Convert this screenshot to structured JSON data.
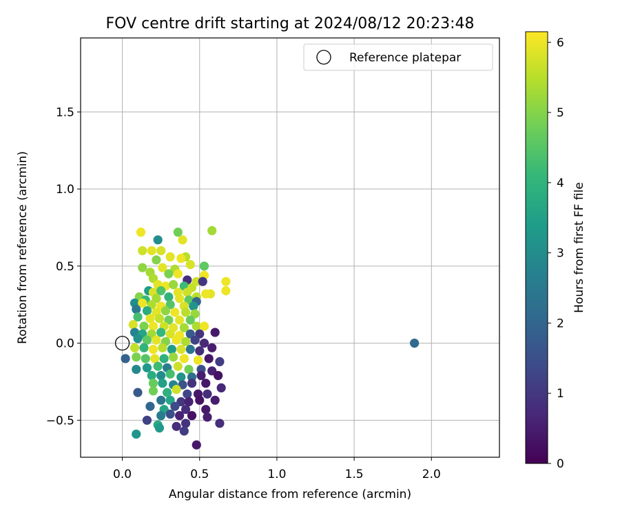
{
  "chart_data": {
    "type": "scatter",
    "title": "FOV centre drift starting at 2024/08/12 20:23:48",
    "xlabel": "Angular distance from reference (arcmin)",
    "ylabel": "Rotation from reference (arcmin)",
    "xlim": [
      -0.27,
      2.44
    ],
    "ylim": [
      -0.74,
      1.98
    ],
    "xticks": [
      0.0,
      0.5,
      1.0,
      1.5,
      2.0
    ],
    "xtick_labels": [
      "0.0",
      "0.5",
      "1.0",
      "1.5",
      "2.0"
    ],
    "yticks": [
      -0.5,
      0.0,
      0.5,
      1.0,
      1.5
    ],
    "ytick_labels": [
      "−0.5",
      "0.0",
      "0.5",
      "1.0",
      "1.5"
    ],
    "grid": true,
    "legend": {
      "position": "top-right",
      "entries": [
        "Reference platepar"
      ]
    },
    "reference_point": {
      "x": 0.0,
      "y": 0.0,
      "label": "Reference platepar",
      "marker": "open-circle"
    },
    "colorbar": {
      "label": "Hours from first FF file",
      "range": [
        0,
        6.15
      ],
      "ticks": [
        0,
        1,
        2,
        3,
        4,
        5,
        6
      ],
      "tick_labels": [
        "0",
        "1",
        "2",
        "3",
        "4",
        "5",
        "6"
      ],
      "colormap": "viridis"
    },
    "colormap_stops": [
      "#440154",
      "#482878",
      "#3e4a89",
      "#31688e",
      "#26828e",
      "#1f9e89",
      "#35b779",
      "#6ece58",
      "#b5de2b",
      "#fde725"
    ],
    "points": [
      {
        "x": 0.12,
        "y": 0.72,
        "c": 6.0
      },
      {
        "x": 0.36,
        "y": 0.72,
        "c": 4.8
      },
      {
        "x": 0.58,
        "y": 0.73,
        "c": 5.3
      },
      {
        "x": 0.39,
        "y": 0.67,
        "c": 5.9
      },
      {
        "x": 0.23,
        "y": 0.67,
        "c": 3.0
      },
      {
        "x": 0.13,
        "y": 0.6,
        "c": 5.7
      },
      {
        "x": 0.19,
        "y": 0.6,
        "c": 5.9
      },
      {
        "x": 0.25,
        "y": 0.6,
        "c": 5.8
      },
      {
        "x": 0.31,
        "y": 0.56,
        "c": 5.9
      },
      {
        "x": 0.41,
        "y": 0.56,
        "c": 5.5
      },
      {
        "x": 0.38,
        "y": 0.55,
        "c": 6.0
      },
      {
        "x": 0.22,
        "y": 0.54,
        "c": 5.0
      },
      {
        "x": 0.44,
        "y": 0.51,
        "c": 5.8
      },
      {
        "x": 0.53,
        "y": 0.5,
        "c": 4.6
      },
      {
        "x": 0.13,
        "y": 0.49,
        "c": 5.1
      },
      {
        "x": 0.26,
        "y": 0.49,
        "c": 5.9
      },
      {
        "x": 0.34,
        "y": 0.48,
        "c": 5.4
      },
      {
        "x": 0.18,
        "y": 0.46,
        "c": 5.3
      },
      {
        "x": 0.3,
        "y": 0.45,
        "c": 4.9
      },
      {
        "x": 0.36,
        "y": 0.45,
        "c": 6.0
      },
      {
        "x": 0.48,
        "y": 0.4,
        "c": 5.7
      },
      {
        "x": 0.53,
        "y": 0.44,
        "c": 6.0
      },
      {
        "x": 0.42,
        "y": 0.41,
        "c": 0.8
      },
      {
        "x": 0.52,
        "y": 0.4,
        "c": 1.0
      },
      {
        "x": 0.67,
        "y": 0.4,
        "c": 6.0
      },
      {
        "x": 0.67,
        "y": 0.34,
        "c": 6.0
      },
      {
        "x": 0.57,
        "y": 0.32,
        "c": 5.9
      },
      {
        "x": 0.54,
        "y": 0.32,
        "c": 6.0
      },
      {
        "x": 0.2,
        "y": 0.42,
        "c": 5.4
      },
      {
        "x": 0.23,
        "y": 0.38,
        "c": 5.9
      },
      {
        "x": 0.28,
        "y": 0.37,
        "c": 6.0
      },
      {
        "x": 0.33,
        "y": 0.38,
        "c": 5.2
      },
      {
        "x": 0.4,
        "y": 0.37,
        "c": 4.2
      },
      {
        "x": 0.45,
        "y": 0.36,
        "c": 5.6
      },
      {
        "x": 0.17,
        "y": 0.34,
        "c": 3.4
      },
      {
        "x": 0.2,
        "y": 0.33,
        "c": 5.8
      },
      {
        "x": 0.25,
        "y": 0.34,
        "c": 4.4
      },
      {
        "x": 0.36,
        "y": 0.33,
        "c": 5.9
      },
      {
        "x": 0.42,
        "y": 0.33,
        "c": 5.7
      },
      {
        "x": 0.48,
        "y": 0.3,
        "c": 5.5
      },
      {
        "x": 0.11,
        "y": 0.3,
        "c": 5.0
      },
      {
        "x": 0.15,
        "y": 0.28,
        "c": 4.1
      },
      {
        "x": 0.22,
        "y": 0.29,
        "c": 5.3
      },
      {
        "x": 0.3,
        "y": 0.3,
        "c": 4.0
      },
      {
        "x": 0.37,
        "y": 0.29,
        "c": 5.9
      },
      {
        "x": 0.43,
        "y": 0.28,
        "c": 4.6
      },
      {
        "x": 0.48,
        "y": 0.27,
        "c": 2.0
      },
      {
        "x": 0.08,
        "y": 0.26,
        "c": 3.0
      },
      {
        "x": 0.13,
        "y": 0.26,
        "c": 6.0
      },
      {
        "x": 0.19,
        "y": 0.25,
        "c": 5.4
      },
      {
        "x": 0.25,
        "y": 0.24,
        "c": 6.0
      },
      {
        "x": 0.31,
        "y": 0.25,
        "c": 4.5
      },
      {
        "x": 0.4,
        "y": 0.24,
        "c": 5.8
      },
      {
        "x": 0.46,
        "y": 0.24,
        "c": 3.2
      },
      {
        "x": 0.09,
        "y": 0.22,
        "c": 2.5
      },
      {
        "x": 0.16,
        "y": 0.21,
        "c": 3.8
      },
      {
        "x": 0.22,
        "y": 0.2,
        "c": 5.9
      },
      {
        "x": 0.28,
        "y": 0.21,
        "c": 5.1
      },
      {
        "x": 0.34,
        "y": 0.2,
        "c": 6.0
      },
      {
        "x": 0.41,
        "y": 0.2,
        "c": 5.5
      },
      {
        "x": 0.47,
        "y": 0.19,
        "c": 5.2
      },
      {
        "x": 0.1,
        "y": 0.17,
        "c": 4.3
      },
      {
        "x": 0.18,
        "y": 0.16,
        "c": 5.9
      },
      {
        "x": 0.24,
        "y": 0.16,
        "c": 5.6
      },
      {
        "x": 0.3,
        "y": 0.15,
        "c": 4.8
      },
      {
        "x": 0.37,
        "y": 0.15,
        "c": 5.9
      },
      {
        "x": 0.44,
        "y": 0.15,
        "c": 4.7
      },
      {
        "x": 0.07,
        "y": 0.12,
        "c": 5.8
      },
      {
        "x": 0.14,
        "y": 0.11,
        "c": 4.9
      },
      {
        "x": 0.2,
        "y": 0.11,
        "c": 6.0
      },
      {
        "x": 0.27,
        "y": 0.11,
        "c": 5.7
      },
      {
        "x": 0.33,
        "y": 0.1,
        "c": 5.9
      },
      {
        "x": 0.4,
        "y": 0.1,
        "c": 5.3
      },
      {
        "x": 0.48,
        "y": 0.11,
        "c": 5.4
      },
      {
        "x": 0.53,
        "y": 0.11,
        "c": 6.0
      },
      {
        "x": 0.08,
        "y": 0.07,
        "c": 2.7
      },
      {
        "x": 0.13,
        "y": 0.06,
        "c": 3.6
      },
      {
        "x": 0.19,
        "y": 0.06,
        "c": 5.3
      },
      {
        "x": 0.25,
        "y": 0.07,
        "c": 4.1
      },
      {
        "x": 0.31,
        "y": 0.06,
        "c": 5.8
      },
      {
        "x": 0.37,
        "y": 0.05,
        "c": 6.0
      },
      {
        "x": 0.44,
        "y": 0.06,
        "c": 1.8
      },
      {
        "x": 0.5,
        "y": 0.06,
        "c": 0.9
      },
      {
        "x": 0.6,
        "y": 0.07,
        "c": 0.4
      },
      {
        "x": 0.1,
        "y": 0.03,
        "c": 3.1
      },
      {
        "x": 0.16,
        "y": 0.02,
        "c": 4.6
      },
      {
        "x": 0.22,
        "y": 0.02,
        "c": 5.9
      },
      {
        "x": 0.28,
        "y": 0.01,
        "c": 5.0
      },
      {
        "x": 0.35,
        "y": 0.02,
        "c": 6.0
      },
      {
        "x": 0.41,
        "y": 0.01,
        "c": 5.4
      },
      {
        "x": 0.47,
        "y": 0.02,
        "c": 1.2
      },
      {
        "x": 0.53,
        "y": 0.0,
        "c": 0.7
      },
      {
        "x": 0.08,
        "y": -0.03,
        "c": 5.6
      },
      {
        "x": 0.14,
        "y": -0.03,
        "c": 4.0
      },
      {
        "x": 0.2,
        "y": -0.04,
        "c": 6.0
      },
      {
        "x": 0.26,
        "y": -0.03,
        "c": 5.5
      },
      {
        "x": 0.32,
        "y": -0.04,
        "c": 3.4
      },
      {
        "x": 0.38,
        "y": -0.04,
        "c": 5.8
      },
      {
        "x": 0.44,
        "y": -0.04,
        "c": 2.4
      },
      {
        "x": 0.5,
        "y": -0.05,
        "c": 0.8
      },
      {
        "x": 0.58,
        "y": -0.03,
        "c": 0.5
      },
      {
        "x": 0.02,
        "y": -0.1,
        "c": 1.9
      },
      {
        "x": 0.09,
        "y": -0.09,
        "c": 4.9
      },
      {
        "x": 0.15,
        "y": -0.1,
        "c": 4.5
      },
      {
        "x": 0.21,
        "y": -0.1,
        "c": 5.9
      },
      {
        "x": 0.27,
        "y": -0.1,
        "c": 3.9
      },
      {
        "x": 0.33,
        "y": -0.09,
        "c": 5.2
      },
      {
        "x": 0.4,
        "y": -0.1,
        "c": 6.0
      },
      {
        "x": 0.49,
        "y": -0.11,
        "c": 6.0
      },
      {
        "x": 0.56,
        "y": -0.1,
        "c": 0.4
      },
      {
        "x": 0.63,
        "y": -0.12,
        "c": 1.1
      },
      {
        "x": 0.09,
        "y": -0.17,
        "c": 2.9
      },
      {
        "x": 0.16,
        "y": -0.16,
        "c": 3.3
      },
      {
        "x": 0.23,
        "y": -0.15,
        "c": 4.2
      },
      {
        "x": 0.29,
        "y": -0.16,
        "c": 2.6
      },
      {
        "x": 0.36,
        "y": -0.15,
        "c": 5.7
      },
      {
        "x": 0.43,
        "y": -0.17,
        "c": 4.8
      },
      {
        "x": 0.51,
        "y": -0.17,
        "c": 1.5
      },
      {
        "x": 0.58,
        "y": -0.18,
        "c": 0.6
      },
      {
        "x": 0.19,
        "y": -0.21,
        "c": 3.8
      },
      {
        "x": 0.25,
        "y": -0.21,
        "c": 3.0
      },
      {
        "x": 0.31,
        "y": -0.2,
        "c": 4.3
      },
      {
        "x": 0.38,
        "y": -0.22,
        "c": 3.2
      },
      {
        "x": 0.45,
        "y": -0.22,
        "c": 2.2
      },
      {
        "x": 0.51,
        "y": -0.21,
        "c": 0.5
      },
      {
        "x": 0.62,
        "y": -0.21,
        "c": 0.3
      },
      {
        "x": 0.2,
        "y": -0.26,
        "c": 4.7
      },
      {
        "x": 0.26,
        "y": -0.26,
        "c": 3.5
      },
      {
        "x": 0.33,
        "y": -0.27,
        "c": 2.8
      },
      {
        "x": 0.39,
        "y": -0.27,
        "c": 1.6
      },
      {
        "x": 0.45,
        "y": -0.26,
        "c": 0.9
      },
      {
        "x": 0.54,
        "y": -0.26,
        "c": 0.4
      },
      {
        "x": 0.64,
        "y": -0.29,
        "c": 0.7
      },
      {
        "x": 0.1,
        "y": -0.32,
        "c": 1.7
      },
      {
        "x": 0.2,
        "y": -0.31,
        "c": 4.8
      },
      {
        "x": 0.29,
        "y": -0.32,
        "c": 3.9
      },
      {
        "x": 0.35,
        "y": -0.3,
        "c": 5.7
      },
      {
        "x": 0.42,
        "y": -0.33,
        "c": 1.3
      },
      {
        "x": 0.49,
        "y": -0.33,
        "c": 0.4
      },
      {
        "x": 0.55,
        "y": -0.33,
        "c": 0.8
      },
      {
        "x": 0.25,
        "y": -0.37,
        "c": 2.4
      },
      {
        "x": 0.31,
        "y": -0.37,
        "c": 3.6
      },
      {
        "x": 0.38,
        "y": -0.38,
        "c": 1.0
      },
      {
        "x": 0.43,
        "y": -0.38,
        "c": 0.6
      },
      {
        "x": 0.5,
        "y": -0.37,
        "c": 0.3
      },
      {
        "x": 0.6,
        "y": -0.37,
        "c": 0.5
      },
      {
        "x": 0.18,
        "y": -0.41,
        "c": 2.0
      },
      {
        "x": 0.27,
        "y": -0.43,
        "c": 3.6
      },
      {
        "x": 0.34,
        "y": -0.41,
        "c": 1.4
      },
      {
        "x": 0.41,
        "y": -0.43,
        "c": 0.8
      },
      {
        "x": 0.54,
        "y": -0.43,
        "c": 0.4
      },
      {
        "x": 0.25,
        "y": -0.47,
        "c": 2.6
      },
      {
        "x": 0.31,
        "y": -0.46,
        "c": 1.5
      },
      {
        "x": 0.37,
        "y": -0.47,
        "c": 0.6
      },
      {
        "x": 0.45,
        "y": -0.47,
        "c": 0.3
      },
      {
        "x": 0.55,
        "y": -0.48,
        "c": 0.5
      },
      {
        "x": 0.16,
        "y": -0.5,
        "c": 1.2
      },
      {
        "x": 0.41,
        "y": -0.52,
        "c": 0.9
      },
      {
        "x": 0.63,
        "y": -0.52,
        "c": 0.8
      },
      {
        "x": 0.23,
        "y": -0.53,
        "c": 3.7
      },
      {
        "x": 0.35,
        "y": -0.54,
        "c": 0.8
      },
      {
        "x": 0.24,
        "y": -0.55,
        "c": 3.3
      },
      {
        "x": 0.4,
        "y": -0.57,
        "c": 1.1
      },
      {
        "x": 0.09,
        "y": -0.59,
        "c": 3.2
      },
      {
        "x": 0.48,
        "y": -0.66,
        "c": 0.4
      },
      {
        "x": 1.89,
        "y": -0.0,
        "c": 2.1
      }
    ]
  }
}
